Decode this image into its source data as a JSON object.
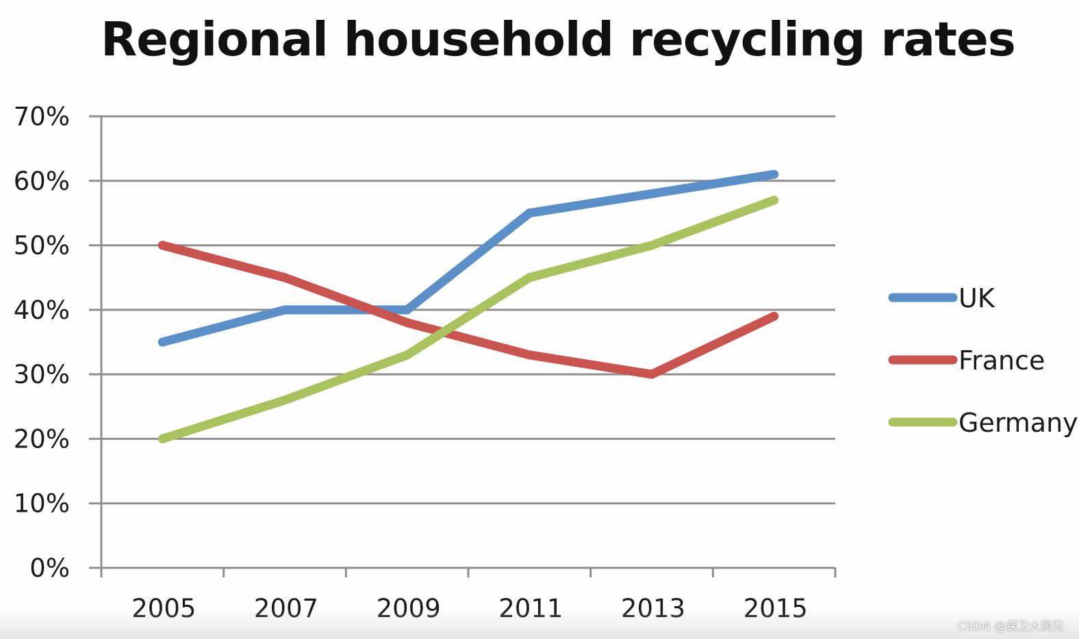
{
  "chart_data": {
    "type": "line",
    "title": "Regional household recycling rates",
    "xlabel": "",
    "ylabel": "",
    "categories": [
      "2005",
      "2007",
      "2009",
      "2011",
      "2013",
      "2015"
    ],
    "y_ticks": [
      "0%",
      "10%",
      "20%",
      "30%",
      "40%",
      "50%",
      "60%",
      "70%"
    ],
    "ylim": [
      0,
      70
    ],
    "grid": true,
    "legend_position": "right",
    "series": [
      {
        "name": "UK",
        "color": "#5b8fc7",
        "values": [
          35,
          40,
          40,
          55,
          58,
          61
        ]
      },
      {
        "name": "France",
        "color": "#c9534f",
        "values": [
          50,
          45,
          38,
          33,
          30,
          39
        ]
      },
      {
        "name": "Germany",
        "color": "#a8c35e",
        "values": [
          20,
          26,
          33,
          45,
          50,
          57
        ]
      }
    ]
  },
  "watermark": "CSDN @保卫大狮兄"
}
